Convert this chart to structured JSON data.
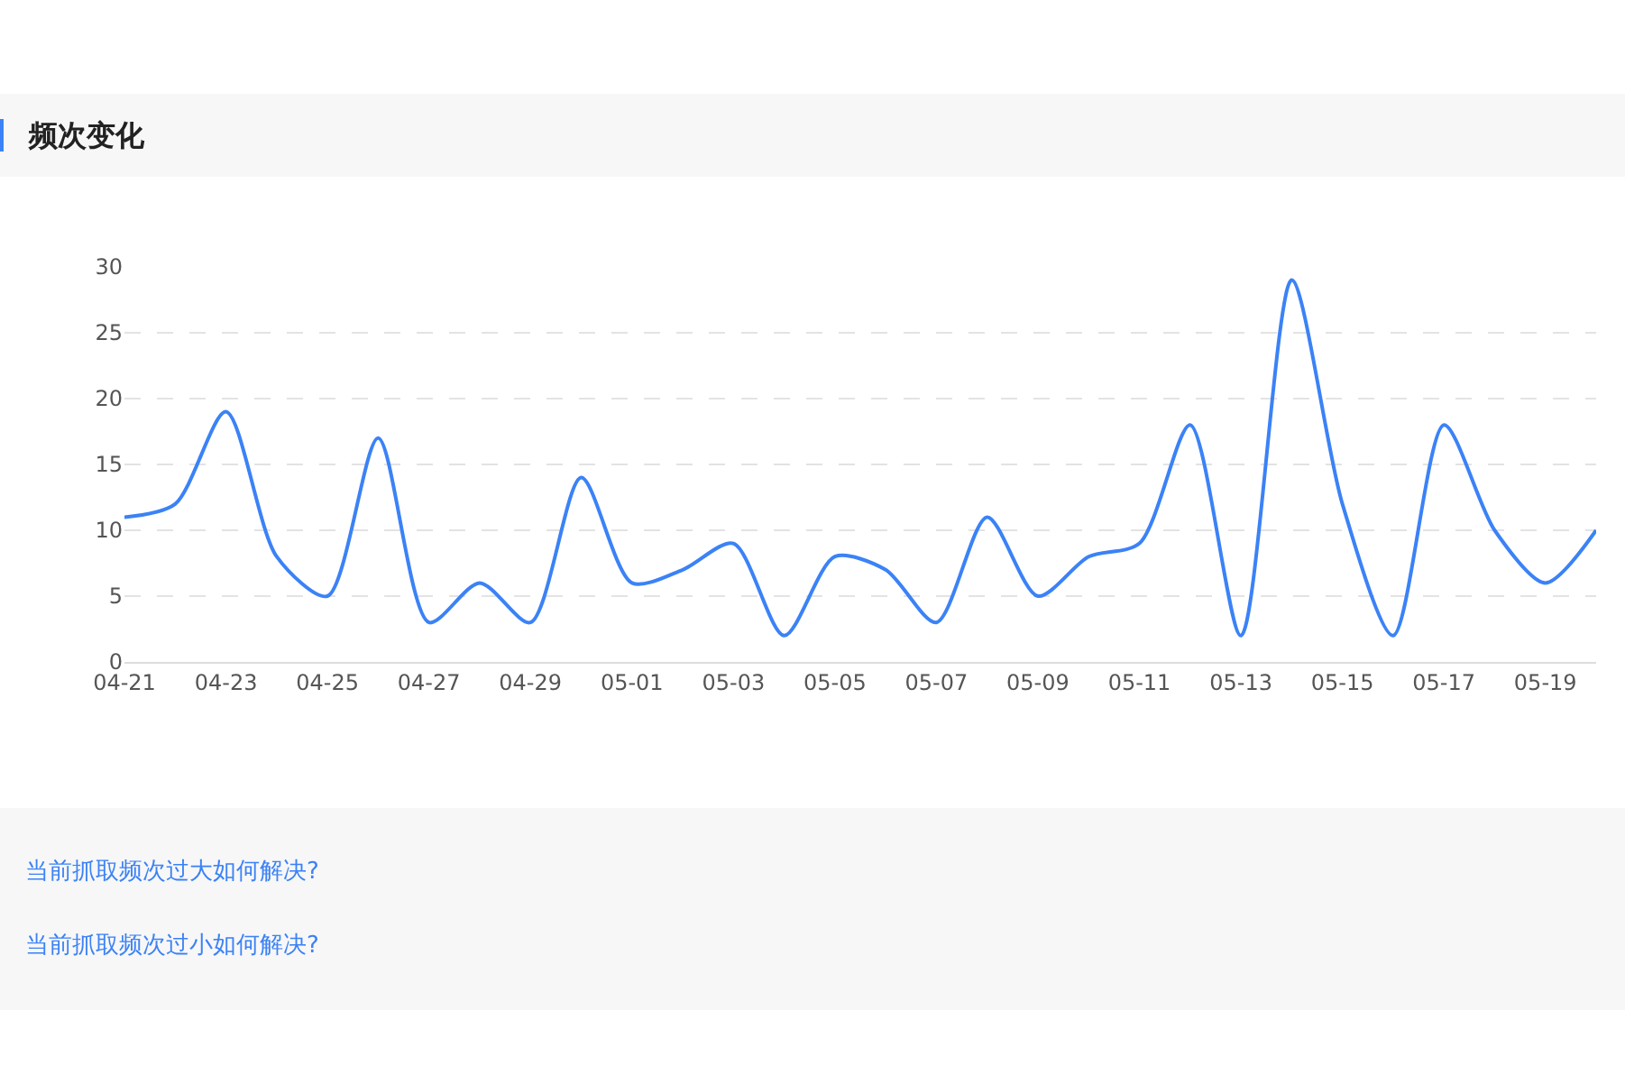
{
  "chart_data": {
    "type": "line",
    "title": "频次变化",
    "categories": [
      "04-21",
      null,
      "04-23",
      null,
      "04-25",
      null,
      "04-27",
      null,
      "04-29",
      null,
      "05-01",
      null,
      "05-03",
      null,
      "05-05",
      null,
      "05-07",
      null,
      "05-09",
      null,
      "05-11",
      null,
      "05-13",
      null,
      "05-15",
      null,
      "05-17",
      null,
      "05-19",
      null
    ],
    "series": [
      {
        "color": "#3b82f6",
        "values": [
          11,
          12,
          19,
          8,
          5,
          17,
          3,
          6,
          3,
          14,
          6,
          7,
          9,
          2,
          8,
          7,
          3,
          11,
          5,
          8,
          9,
          18,
          2,
          29,
          12,
          2,
          18,
          10,
          6,
          10
        ]
      }
    ],
    "ylim": [
      0,
      30
    ],
    "yticks": [
      0,
      5,
      10,
      15,
      20,
      25,
      30
    ],
    "grid": "y",
    "marker": "none",
    "line_style": "solid",
    "annotations": [
      "当前抓取频次过大如何解决?",
      "当前抓取频次过小如何解决?"
    ]
  }
}
